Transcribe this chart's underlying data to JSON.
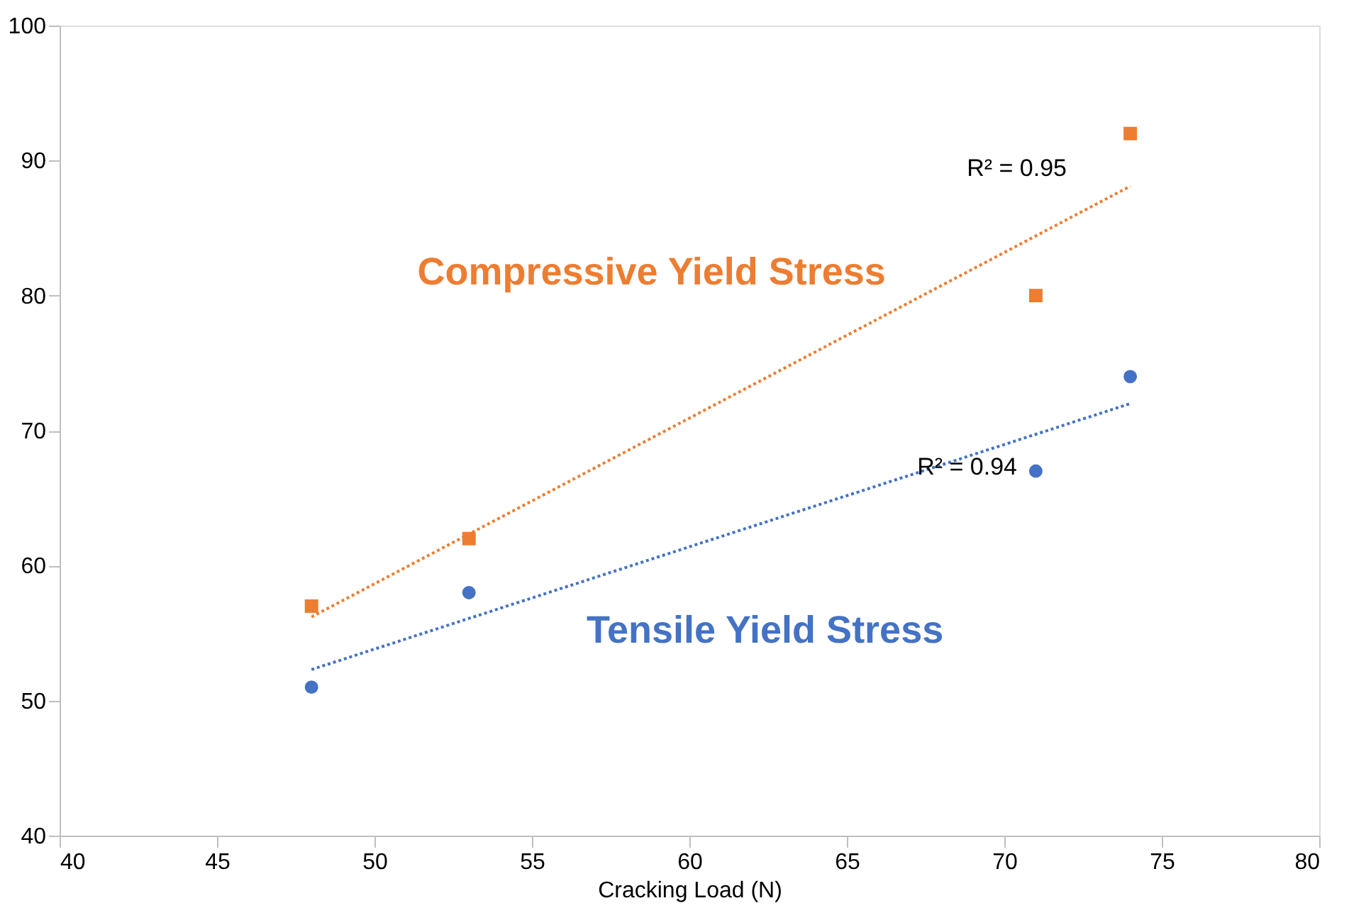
{
  "chart_data": {
    "type": "scatter",
    "xlabel": "Cracking Load (N)",
    "xlim": [
      40,
      80
    ],
    "xticks": [
      40,
      45,
      50,
      55,
      60,
      65,
      70,
      75,
      80
    ],
    "ylim": [
      40,
      100
    ],
    "yticks": [
      40,
      50,
      60,
      70,
      80,
      90,
      100
    ],
    "grid": false,
    "series": [
      {
        "name": "Compressive Yield Stress",
        "color": "#ed7d31",
        "marker": "square",
        "x": [
          48,
          53,
          71,
          74
        ],
        "values": [
          57,
          62,
          80,
          92
        ]
      },
      {
        "name": "Tensile Yield Stress",
        "color": "#4472c4",
        "marker": "circle",
        "x": [
          48,
          53,
          71,
          74
        ],
        "values": [
          51,
          58,
          67,
          74
        ]
      },
      {
        "type": "line",
        "color": "#ed7d31",
        "line_style": "dotted",
        "marker": "none",
        "x": [
          48,
          74
        ],
        "values": [
          56.2,
          88.1
        ]
      },
      {
        "type": "line",
        "color": "#4472c4",
        "line_style": "dotted",
        "marker": "none",
        "x": [
          48,
          74
        ],
        "values": [
          52.3,
          72.0
        ]
      }
    ],
    "annotations": [
      "R² = 0.95",
      "R² = 0.94"
    ]
  }
}
